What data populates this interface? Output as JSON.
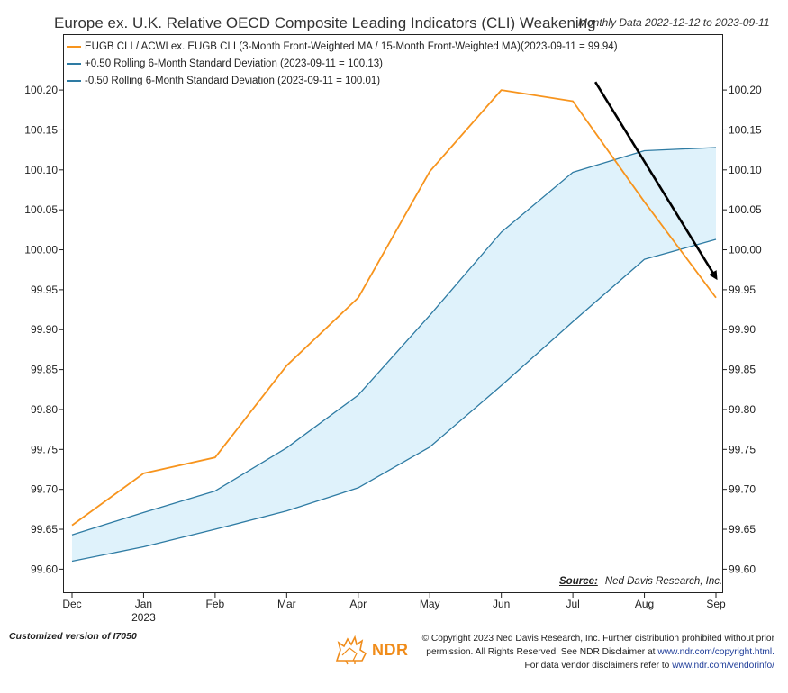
{
  "header": {
    "title": "Europe ex. U.K. Relative OECD Composite Leading Indicators (CLI) Weakening",
    "subtitle": "Monthly Data 2022-12-12 to 2023-09-11"
  },
  "legend": {
    "items": [
      {
        "label": "EUGB CLI / ACWI ex. EUGB CLI (3-Month Front-Weighted MA / 15-Month Front-Weighted MA)(2023-09-11 = 99.94)",
        "color": "#f7941d"
      },
      {
        "label": "+0.50 Rolling 6-Month Standard Deviation (2023-09-11 = 100.13)",
        "color": "#2e7ba3"
      },
      {
        "label": "-0.50 Rolling 6-Month Standard Deviation (2023-09-11 = 100.01)",
        "color": "#2e7ba3"
      }
    ]
  },
  "source": {
    "label": "Source:",
    "text": "Ned Davis Research, Inc."
  },
  "footer": {
    "custom_note": "Customized version of I7050",
    "logo_text": "NDR",
    "copyright_line1": "© Copyright 2023 Ned Davis Research, Inc. Further distribution prohibited without prior",
    "copyright_line2": "permission. All Rights Reserved. See NDR Disclaimer at ",
    "copyright_link1": "www.ndr.com/copyright.html.",
    "copyright_line3": "For data vendor disclaimers refer to ",
    "copyright_link2": "www.ndr.com/vendorinfo/"
  },
  "colors": {
    "main_line": "#f7941d",
    "band_line": "#2e7ba3",
    "band_fill": "#dff2fb",
    "arrow": "#000000"
  },
  "chart_data": {
    "type": "line",
    "title": "Europe ex. U.K. Relative OECD Composite Leading Indicators (CLI) Weakening",
    "categories": [
      "Dec",
      "Jan",
      "Feb",
      "Mar",
      "Apr",
      "May",
      "Jun",
      "Jul",
      "Aug",
      "Sep"
    ],
    "year_label": "2023",
    "year_under": "Jan",
    "ylim": [
      99.57,
      100.27
    ],
    "yticks": [
      99.6,
      99.65,
      99.7,
      99.75,
      99.8,
      99.85,
      99.9,
      99.95,
      100.0,
      100.05,
      100.1,
      100.15,
      100.2
    ],
    "ytick_labels": [
      "99.60",
      "99.65",
      "99.70",
      "99.75",
      "99.80",
      "99.85",
      "99.90",
      "99.95",
      "100.00",
      "100.05",
      "100.10",
      "100.15",
      "100.20"
    ],
    "grid": false,
    "legend_position": "top-left",
    "series": [
      {
        "name": "EUGB CLI / ACWI ex. EUGB CLI",
        "values": [
          99.655,
          99.72,
          99.74,
          99.855,
          99.94,
          100.098,
          100.2,
          100.186,
          100.06,
          99.94
        ]
      },
      {
        "name": "+0.50 Rolling 6-Month Standard Deviation",
        "values": [
          99.643,
          99.671,
          99.698,
          99.752,
          99.818,
          99.918,
          100.022,
          100.097,
          100.124,
          100.128
        ]
      },
      {
        "name": "-0.50 Rolling 6-Month Standard Deviation",
        "values": [
          99.61,
          99.628,
          99.65,
          99.673,
          99.702,
          99.753,
          99.83,
          99.91,
          99.988,
          100.013
        ]
      }
    ],
    "annotation": {
      "type": "arrow",
      "from": {
        "x": "Jul",
        "y": 100.21
      },
      "to": {
        "x": "Sep",
        "y": 99.965
      }
    }
  }
}
